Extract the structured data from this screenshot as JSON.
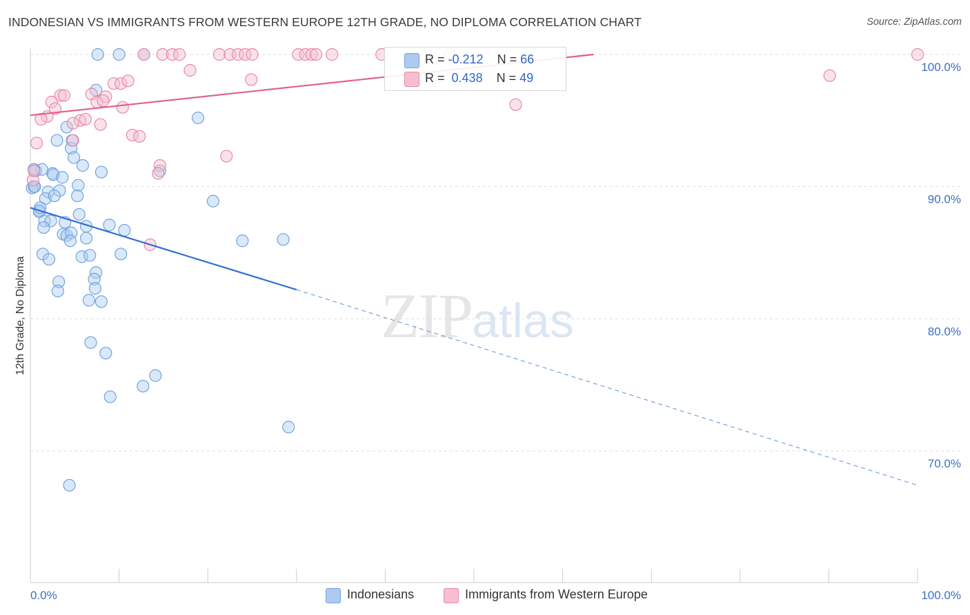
{
  "chart_data": {
    "type": "scatter",
    "title": "INDONESIAN VS IMMIGRANTS FROM WESTERN EUROPE 12TH GRADE, NO DIPLOMA CORRELATION CHART",
    "source": "Source: ZipAtlas.com",
    "ylabel": "12th Grade, No Diploma",
    "xlabel": "",
    "xlim": [
      0,
      100
    ],
    "ylim": [
      61.5,
      101.5
    ],
    "x_tick_labels": [
      "0.0%",
      "100.0%"
    ],
    "y_ticks": [
      {
        "value": 100,
        "label": "100.0%"
      },
      {
        "value": 90,
        "label": "90.0%"
      },
      {
        "value": 80,
        "label": "80.0%"
      },
      {
        "value": 70,
        "label": "70.0%"
      }
    ],
    "watermark": {
      "zip": "ZIP",
      "atlas": "atlas"
    },
    "legend": {
      "r_label": "R =",
      "n_label": "N =",
      "entries": [
        {
          "name": "Indonesians",
          "r": "-0.212",
          "n": "66",
          "color": "#6fa3e0",
          "fill": "#aecbef"
        },
        {
          "name": "Immigrants from Western Europe",
          "r": "0.438",
          "n": "49",
          "color": "#e888a8",
          "fill": "#f5bfd0"
        }
      ]
    },
    "series": [
      {
        "name": "Indonesians",
        "color": "#6fa3e0",
        "trend": {
          "x0": 0,
          "y0": 88.4,
          "x1": 30,
          "y1": 82.2,
          "x_dash_end": 100,
          "y_dash_end": 67.4
        },
        "points": [
          [
            7.6,
            100
          ],
          [
            10.0,
            100
          ],
          [
            12.8,
            100
          ],
          [
            7.4,
            97.3
          ],
          [
            18.9,
            95.2
          ],
          [
            4.1,
            94.5
          ],
          [
            3.0,
            93.5
          ],
          [
            4.7,
            93.5
          ],
          [
            4.6,
            92.9
          ],
          [
            4.9,
            92.2
          ],
          [
            5.9,
            91.6
          ],
          [
            0.6,
            91.2
          ],
          [
            1.3,
            91.3
          ],
          [
            2.5,
            91.0
          ],
          [
            2.6,
            90.9
          ],
          [
            3.6,
            90.7
          ],
          [
            8.0,
            91.1
          ],
          [
            14.6,
            91.2
          ],
          [
            0.4,
            90.0
          ],
          [
            0.2,
            89.9
          ],
          [
            2.0,
            89.6
          ],
          [
            3.3,
            89.7
          ],
          [
            5.4,
            90.1
          ],
          [
            1.7,
            89.1
          ],
          [
            2.7,
            89.3
          ],
          [
            5.3,
            89.3
          ],
          [
            20.6,
            88.9
          ],
          [
            1.0,
            88.2
          ],
          [
            1.0,
            88.1
          ],
          [
            5.5,
            87.9
          ],
          [
            1.6,
            87.4
          ],
          [
            2.3,
            87.4
          ],
          [
            3.9,
            87.3
          ],
          [
            1.5,
            86.9
          ],
          [
            6.3,
            87.0
          ],
          [
            8.9,
            87.1
          ],
          [
            10.6,
            86.7
          ],
          [
            3.7,
            86.4
          ],
          [
            4.1,
            86.3
          ],
          [
            4.6,
            86.5
          ],
          [
            6.3,
            86.1
          ],
          [
            4.5,
            85.9
          ],
          [
            23.9,
            85.9
          ],
          [
            28.5,
            86.0
          ],
          [
            1.4,
            84.9
          ],
          [
            2.1,
            84.5
          ],
          [
            5.8,
            84.7
          ],
          [
            6.7,
            84.8
          ],
          [
            10.2,
            84.9
          ],
          [
            7.4,
            83.5
          ],
          [
            7.2,
            83.0
          ],
          [
            3.2,
            82.8
          ],
          [
            7.3,
            82.3
          ],
          [
            3.1,
            82.1
          ],
          [
            6.6,
            81.4
          ],
          [
            8.0,
            81.3
          ],
          [
            6.8,
            78.2
          ],
          [
            8.5,
            77.4
          ],
          [
            14.1,
            75.7
          ],
          [
            12.7,
            74.9
          ],
          [
            9.0,
            74.1
          ],
          [
            29.1,
            71.8
          ],
          [
            4.4,
            67.4
          ],
          [
            0.4,
            91.3
          ],
          [
            0.5,
            90.0
          ],
          [
            1.1,
            88.4
          ]
        ]
      },
      {
        "name": "Immigrants from Western Europe",
        "color": "#e888a8",
        "trend": {
          "x0": 0,
          "y0": 95.4,
          "x1": 63.5,
          "y1": 100,
          "x_dash_end": 63.5,
          "y_dash_end": 100
        },
        "points": [
          [
            12.8,
            100
          ],
          [
            14.9,
            100
          ],
          [
            16.0,
            100
          ],
          [
            16.8,
            100
          ],
          [
            21.3,
            100
          ],
          [
            22.5,
            100
          ],
          [
            23.4,
            100
          ],
          [
            24.2,
            100
          ],
          [
            25.0,
            100
          ],
          [
            30.2,
            100
          ],
          [
            31.0,
            100
          ],
          [
            31.7,
            100
          ],
          [
            32.2,
            100
          ],
          [
            34.0,
            100
          ],
          [
            39.6,
            100
          ],
          [
            47.2,
            100
          ],
          [
            100.0,
            100
          ],
          [
            18.0,
            98.8
          ],
          [
            24.9,
            98.1
          ],
          [
            90.1,
            98.4
          ],
          [
            9.4,
            97.8
          ],
          [
            10.2,
            97.8
          ],
          [
            11.0,
            98.0
          ],
          [
            3.4,
            96.9
          ],
          [
            3.8,
            96.9
          ],
          [
            6.9,
            97.0
          ],
          [
            8.5,
            96.8
          ],
          [
            7.5,
            96.4
          ],
          [
            2.4,
            96.4
          ],
          [
            8.2,
            96.5
          ],
          [
            10.4,
            96.0
          ],
          [
            2.8,
            95.9
          ],
          [
            1.9,
            95.3
          ],
          [
            1.2,
            95.1
          ],
          [
            5.6,
            95.0
          ],
          [
            4.8,
            94.8
          ],
          [
            6.2,
            95.1
          ],
          [
            7.9,
            94.7
          ],
          [
            11.5,
            93.9
          ],
          [
            12.3,
            93.8
          ],
          [
            0.7,
            93.3
          ],
          [
            4.8,
            93.5
          ],
          [
            22.1,
            92.3
          ],
          [
            14.6,
            91.6
          ],
          [
            14.4,
            91.0
          ],
          [
            0.3,
            90.5
          ],
          [
            54.7,
            96.2
          ],
          [
            13.5,
            85.6
          ],
          [
            0.4,
            91.2
          ]
        ]
      }
    ]
  }
}
